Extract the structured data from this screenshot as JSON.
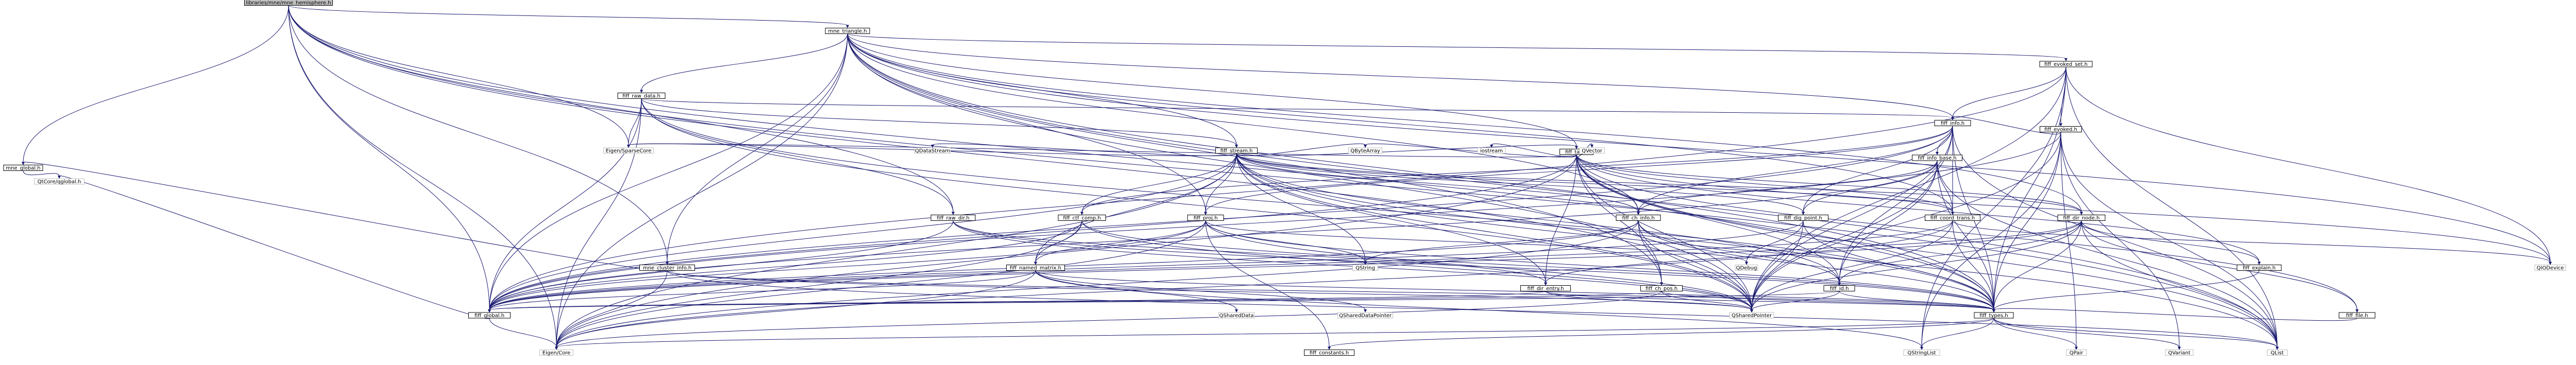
{
  "title": "libraries/mne/mne_hemisphere.h",
  "colors": {
    "edge": "#191970",
    "root_fill": "#bfbfbf",
    "external_border": "#bfbfbf"
  },
  "nodes": [
    {
      "id": "root",
      "label": "libraries/mne/mne_hemisphere.h",
      "kind": "root"
    },
    {
      "id": "mne_global",
      "label": "mne_global.h"
    },
    {
      "id": "qtconfig",
      "label": "QtCore/qglobal.h",
      "kind": "external"
    },
    {
      "id": "tri",
      "label": "mne_triangle.h"
    },
    {
      "id": "fiff_evoked_set",
      "label": "fiff_evoked_set.h"
    },
    {
      "id": "fiff_raw_data",
      "label": "fiff_raw_data.h"
    },
    {
      "id": "fiff_evoked",
      "label": "fiff_evoked.h"
    },
    {
      "id": "fiff_info",
      "label": "fiff_info.h"
    },
    {
      "id": "fiff_info_base",
      "label": "fiff_info_base.h"
    },
    {
      "id": "fiff_stream",
      "label": "fiff_stream.h"
    },
    {
      "id": "fiff_tag",
      "label": "fiff_tag.h"
    },
    {
      "id": "fiff_raw_dir",
      "label": "fiff_raw_dir.h"
    },
    {
      "id": "fiff_ctf_comp",
      "label": "fiff_ctf_comp.h"
    },
    {
      "id": "fiff_proj",
      "label": "fiff_proj.h"
    },
    {
      "id": "fiff_ch_info",
      "label": "fiff_ch_info.h"
    },
    {
      "id": "fiff_dig_point",
      "label": "fiff_dig_point.h"
    },
    {
      "id": "fiff_coord_trans",
      "label": "fiff_coord_trans.h"
    },
    {
      "id": "fiff_dir_node",
      "label": "fiff_dir_node.h"
    },
    {
      "id": "fiff_explain",
      "label": "fiff_explain.h"
    },
    {
      "id": "fiff_named_matrix",
      "label": "fiff_named_matrix.h"
    },
    {
      "id": "mne_cluster",
      "label": "mne_cluster_info.h"
    },
    {
      "id": "fiff_dir_entry",
      "label": "fiff_dir_entry.h"
    },
    {
      "id": "fiff_ch_pos",
      "label": "fiff_ch_pos.h"
    },
    {
      "id": "fiff_id",
      "label": "fiff_id.h"
    },
    {
      "id": "fiff_file",
      "label": "fiff_file.h"
    },
    {
      "id": "fiff_global",
      "label": "fiff_global.h"
    },
    {
      "id": "fiff_types",
      "label": "fiff_types.h"
    },
    {
      "id": "fiff_constants",
      "label": "fiff_constants.h"
    },
    {
      "id": "eigen_core",
      "label": "Eigen/Core",
      "kind": "external"
    },
    {
      "id": "eigen_sparse",
      "label": "Eigen/SparseCore",
      "kind": "external"
    },
    {
      "id": "qdatastream",
      "label": "QDataStream",
      "kind": "external"
    },
    {
      "id": "qbytearray",
      "label": "QByteArray",
      "kind": "external"
    },
    {
      "id": "iostream",
      "label": "iostream",
      "kind": "external"
    },
    {
      "id": "qvector",
      "label": "QVector",
      "kind": "external"
    },
    {
      "id": "qstring",
      "label": "QString",
      "kind": "external"
    },
    {
      "id": "qdebug",
      "label": "QDebug",
      "kind": "external"
    },
    {
      "id": "qshared",
      "label": "QSharedPointer",
      "kind": "external"
    },
    {
      "id": "qshareddata",
      "label": "QSharedData",
      "kind": "external"
    },
    {
      "id": "qshareddataptr",
      "label": "QSharedDataPointer",
      "kind": "external"
    },
    {
      "id": "qiodevice",
      "label": "QIODevice",
      "kind": "external"
    },
    {
      "id": "qstringlist",
      "label": "QStringList",
      "kind": "external"
    },
    {
      "id": "qpair",
      "label": "QPair",
      "kind": "external"
    },
    {
      "id": "qvariant",
      "label": "QVariant",
      "kind": "external"
    },
    {
      "id": "qlist",
      "label": "QList",
      "kind": "external"
    }
  ],
  "edges": [
    [
      "root",
      "mne_global"
    ],
    [
      "root",
      "tri"
    ],
    [
      "root",
      "fiff_global"
    ],
    [
      "root",
      "fiff_types"
    ],
    [
      "root",
      "eigen_core"
    ],
    [
      "root",
      "eigen_sparse"
    ],
    [
      "root",
      "qlist"
    ],
    [
      "root",
      "qshared"
    ],
    [
      "root",
      "mne_cluster"
    ],
    [
      "root",
      "fiff_raw_dir"
    ],
    [
      "mne_global",
      "qtconfig"
    ],
    [
      "tri",
      "fiff_evoked_set"
    ],
    [
      "tri",
      "fiff_raw_data"
    ],
    [
      "tri",
      "fiff_info"
    ],
    [
      "tri",
      "fiff_stream"
    ],
    [
      "tri",
      "fiff_tag"
    ],
    [
      "tri",
      "fiff_global"
    ],
    [
      "tri",
      "fiff_types"
    ],
    [
      "tri",
      "eigen_core"
    ],
    [
      "tri",
      "qlist"
    ],
    [
      "tri",
      "qiodevice"
    ],
    [
      "tri",
      "fiff_dir_node"
    ],
    [
      "tri",
      "fiff_coord_trans"
    ],
    [
      "tri",
      "fiff_proj"
    ],
    [
      "tri",
      "qshared"
    ],
    [
      "tri",
      "mne_cluster"
    ],
    [
      "tri",
      "fiff_ch_pos"
    ],
    [
      "tri",
      "fiff_ch_info"
    ],
    [
      "fiff_evoked_set",
      "fiff_evoked"
    ],
    [
      "fiff_evoked_set",
      "fiff_info"
    ],
    [
      "fiff_evoked_set",
      "fiff_global"
    ],
    [
      "fiff_evoked_set",
      "fiff_types"
    ],
    [
      "fiff_evoked_set",
      "qlist"
    ],
    [
      "fiff_evoked_set",
      "qiodevice"
    ],
    [
      "fiff_evoked_set",
      "qstringlist"
    ],
    [
      "fiff_evoked_set",
      "qshared"
    ],
    [
      "fiff_evoked",
      "fiff_info"
    ],
    [
      "fiff_evoked",
      "fiff_types"
    ],
    [
      "fiff_evoked",
      "qlist"
    ],
    [
      "fiff_evoked",
      "qstringlist"
    ],
    [
      "fiff_evoked",
      "qpair"
    ],
    [
      "fiff_evoked",
      "qshared"
    ],
    [
      "fiff_evoked",
      "fiff_global"
    ],
    [
      "fiff_evoked",
      "qvariant"
    ],
    [
      "fiff_raw_data",
      "fiff_info"
    ],
    [
      "fiff_raw_data",
      "fiff_raw_dir"
    ],
    [
      "fiff_raw_data",
      "fiff_stream"
    ],
    [
      "fiff_raw_data",
      "fiff_global"
    ],
    [
      "fiff_raw_data",
      "fiff_types"
    ],
    [
      "fiff_raw_data",
      "eigen_core"
    ],
    [
      "fiff_raw_data",
      "eigen_sparse"
    ],
    [
      "fiff_raw_data",
      "qshared"
    ],
    [
      "fiff_info",
      "fiff_info_base"
    ],
    [
      "fiff_info",
      "fiff_ctf_comp"
    ],
    [
      "fiff_info",
      "fiff_proj"
    ],
    [
      "fiff_info",
      "fiff_id"
    ],
    [
      "fiff_info",
      "fiff_ch_info"
    ],
    [
      "fiff_info",
      "fiff_dig_point"
    ],
    [
      "fiff_info",
      "fiff_coord_trans"
    ],
    [
      "fiff_info",
      "fiff_global"
    ],
    [
      "fiff_info",
      "fiff_types"
    ],
    [
      "fiff_info",
      "qlist"
    ],
    [
      "fiff_info",
      "qshared"
    ],
    [
      "fiff_info_base",
      "fiff_ch_info"
    ],
    [
      "fiff_info_base",
      "fiff_coord_trans"
    ],
    [
      "fiff_info_base",
      "fiff_id"
    ],
    [
      "fiff_info_base",
      "fiff_types"
    ],
    [
      "fiff_info_base",
      "fiff_global"
    ],
    [
      "fiff_info_base",
      "qlist"
    ],
    [
      "fiff_info_base",
      "qshared"
    ],
    [
      "fiff_info_base",
      "fiff_dig_point"
    ],
    [
      "fiff_stream",
      "fiff_global"
    ],
    [
      "fiff_stream",
      "fiff_tag"
    ],
    [
      "fiff_stream",
      "fiff_dir_node"
    ],
    [
      "fiff_stream",
      "fiff_id"
    ],
    [
      "fiff_stream",
      "fiff_proj"
    ],
    [
      "fiff_stream",
      "fiff_ctf_comp"
    ],
    [
      "fiff_stream",
      "fiff_named_matrix"
    ],
    [
      "fiff_stream",
      "fiff_types"
    ],
    [
      "fiff_stream",
      "qbytearray"
    ],
    [
      "fiff_stream",
      "qdatastream"
    ],
    [
      "fiff_stream",
      "qshared"
    ],
    [
      "fiff_stream",
      "qstring"
    ],
    [
      "fiff_stream",
      "qlist"
    ],
    [
      "fiff_stream",
      "eigen_core"
    ],
    [
      "fiff_stream",
      "eigen_sparse"
    ],
    [
      "fiff_stream",
      "fiff_dir_entry"
    ],
    [
      "fiff_stream",
      "fiff_ch_info"
    ],
    [
      "fiff_stream",
      "fiff_coord_trans"
    ],
    [
      "fiff_stream",
      "fiff_dig_point"
    ],
    [
      "fiff_tag",
      "fiff_global"
    ],
    [
      "fiff_tag",
      "fiff_types"
    ],
    [
      "fiff_tag",
      "fiff_id"
    ],
    [
      "fiff_tag",
      "fiff_coord_trans"
    ],
    [
      "fiff_tag",
      "fiff_ch_info"
    ],
    [
      "fiff_tag",
      "fiff_ch_pos"
    ],
    [
      "fiff_tag",
      "fiff_dir_entry"
    ],
    [
      "fiff_tag",
      "fiff_file"
    ],
    [
      "fiff_tag",
      "qbytearray"
    ],
    [
      "fiff_tag",
      "iostream"
    ],
    [
      "fiff_tag",
      "qvector"
    ],
    [
      "fiff_tag",
      "qshared"
    ],
    [
      "fiff_tag",
      "eigen_core"
    ],
    [
      "fiff_tag",
      "eigen_sparse"
    ],
    [
      "fiff_tag",
      "fiff_explain"
    ],
    [
      "fiff_tag",
      "fiff_dir_node"
    ],
    [
      "fiff_tag",
      "qlist"
    ],
    [
      "fiff_tag",
      "qiodevice"
    ],
    [
      "fiff_raw_dir",
      "fiff_global"
    ],
    [
      "fiff_raw_dir",
      "fiff_types"
    ],
    [
      "fiff_raw_dir",
      "fiff_dir_entry"
    ],
    [
      "fiff_raw_dir",
      "qshared"
    ],
    [
      "fiff_ctf_comp",
      "fiff_named_matrix"
    ],
    [
      "fiff_ctf_comp",
      "fiff_global"
    ],
    [
      "fiff_ctf_comp",
      "fiff_types"
    ],
    [
      "fiff_ctf_comp",
      "qshared"
    ],
    [
      "fiff_ctf_comp",
      "eigen_core"
    ],
    [
      "fiff_proj",
      "fiff_global"
    ],
    [
      "fiff_proj",
      "fiff_named_matrix"
    ],
    [
      "fiff_proj",
      "fiff_types"
    ],
    [
      "fiff_proj",
      "qshared"
    ],
    [
      "fiff_proj",
      "qdebug"
    ],
    [
      "fiff_proj",
      "qstring"
    ],
    [
      "fiff_proj",
      "eigen_core"
    ],
    [
      "fiff_proj",
      "fiff_constants"
    ],
    [
      "fiff_ch_info",
      "fiff_ch_pos"
    ],
    [
      "fiff_ch_info",
      "fiff_global"
    ],
    [
      "fiff_ch_info",
      "fiff_types"
    ],
    [
      "fiff_ch_info",
      "qshared"
    ],
    [
      "fiff_ch_info",
      "qstring"
    ],
    [
      "fiff_ch_info",
      "eigen_core"
    ],
    [
      "fiff_ch_info",
      "fiff_id"
    ],
    [
      "fiff_dig_point",
      "fiff_global"
    ],
    [
      "fiff_dig_point",
      "fiff_types"
    ],
    [
      "fiff_dig_point",
      "qshared"
    ],
    [
      "fiff_dig_point",
      "qdebug"
    ],
    [
      "fiff_coord_trans",
      "fiff_global"
    ],
    [
      "fiff_coord_trans",
      "fiff_types"
    ],
    [
      "fiff_coord_trans",
      "qshared"
    ],
    [
      "fiff_coord_trans",
      "eigen_core"
    ],
    [
      "fiff_coord_trans",
      "qiodevice"
    ],
    [
      "fiff_dir_node",
      "fiff_dir_entry"
    ],
    [
      "fiff_dir_node",
      "fiff_id"
    ],
    [
      "fiff_dir_node",
      "fiff_global"
    ],
    [
      "fiff_dir_node",
      "fiff_types"
    ],
    [
      "fiff_dir_node",
      "qshared"
    ],
    [
      "fiff_dir_node",
      "qlist"
    ],
    [
      "fiff_dir_node",
      "fiff_explain"
    ],
    [
      "fiff_dir_node",
      "fiff_file"
    ],
    [
      "fiff_explain",
      "fiff_types"
    ],
    [
      "fiff_named_matrix",
      "fiff_global"
    ],
    [
      "fiff_named_matrix",
      "fiff_types"
    ],
    [
      "fiff_named_matrix",
      "qshareddata"
    ],
    [
      "fiff_named_matrix",
      "qshareddataptr"
    ],
    [
      "fiff_named_matrix",
      "eigen_core"
    ],
    [
      "fiff_named_matrix",
      "qstringlist"
    ],
    [
      "mne_cluster",
      "mne_global"
    ],
    [
      "mne_cluster",
      "eigen_core"
    ],
    [
      "mne_cluster",
      "qlist"
    ],
    [
      "mne_cluster",
      "qshared"
    ],
    [
      "mne_cluster",
      "fiff_types"
    ],
    [
      "fiff_dir_entry",
      "fiff_global"
    ],
    [
      "fiff_dir_entry",
      "fiff_types"
    ],
    [
      "fiff_dir_entry",
      "qshared"
    ],
    [
      "fiff_ch_pos",
      "fiff_global"
    ],
    [
      "fiff_ch_pos",
      "fiff_types"
    ],
    [
      "fiff_ch_pos",
      "eigen_core"
    ],
    [
      "fiff_ch_pos",
      "qshared"
    ],
    [
      "fiff_id",
      "fiff_global"
    ],
    [
      "fiff_id",
      "fiff_types"
    ],
    [
      "fiff_id",
      "qshared"
    ],
    [
      "fiff_file",
      "fiff_types"
    ],
    [
      "fiff_global",
      "qtconfig"
    ],
    [
      "fiff_global",
      "eigen_core"
    ],
    [
      "fiff_types",
      "fiff_constants"
    ],
    [
      "fiff_types",
      "eigen_core"
    ],
    [
      "fiff_types",
      "qstringlist"
    ],
    [
      "fiff_types",
      "qpair"
    ],
    [
      "fiff_types",
      "qvariant"
    ],
    [
      "fiff_types",
      "qlist"
    ]
  ]
}
